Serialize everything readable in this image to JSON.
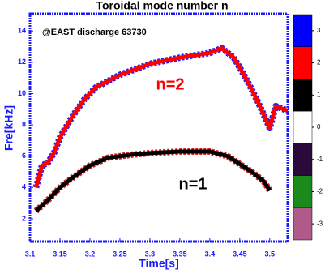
{
  "chart_data": {
    "type": "line",
    "title": "Toroidal mode number n",
    "annotation": "@EAST discharge 63730",
    "xlabel": "Time[s]",
    "ylabel": "Fre[kHz]",
    "xlim": [
      3.1,
      3.53
    ],
    "xticks": [
      3.1,
      3.15,
      3.2,
      3.25,
      3.3,
      3.35,
      3.4,
      3.45,
      3.5
    ],
    "ylim": [
      0.55,
      15.1
    ],
    "yticks": [
      2,
      4,
      6,
      8,
      10,
      12,
      14
    ],
    "series": [
      {
        "name": "n=2",
        "color": "#ff0000",
        "x": [
          3.11,
          3.12,
          3.13,
          3.14,
          3.15,
          3.17,
          3.19,
          3.21,
          3.25,
          3.3,
          3.35,
          3.4,
          3.42,
          3.44,
          3.46,
          3.48,
          3.5,
          3.51,
          3.53
        ],
        "values": [
          4.0,
          5.4,
          5.6,
          6.2,
          7.2,
          8.5,
          9.6,
          10.4,
          11.2,
          11.9,
          12.3,
          12.6,
          12.9,
          12.3,
          11.0,
          9.5,
          7.8,
          9.2,
          8.9
        ]
      },
      {
        "name": "n=1",
        "color": "#000000",
        "x": [
          3.11,
          3.13,
          3.15,
          3.17,
          3.2,
          3.23,
          3.27,
          3.3,
          3.35,
          3.4,
          3.43,
          3.45,
          3.47,
          3.49,
          3.5
        ],
        "values": [
          2.5,
          3.2,
          4.0,
          4.6,
          5.4,
          5.9,
          6.1,
          6.2,
          6.3,
          6.3,
          6.0,
          5.5,
          5.0,
          4.4,
          3.8
        ]
      }
    ],
    "colorbar": {
      "ticks": [
        3,
        2,
        1,
        0,
        -1,
        -2,
        -3
      ],
      "colors": [
        "#0000ff",
        "#ff0000",
        "#000000",
        "#ffffff",
        "#2a0a3a",
        "#1a8a1a",
        "#b05a8a"
      ]
    }
  }
}
